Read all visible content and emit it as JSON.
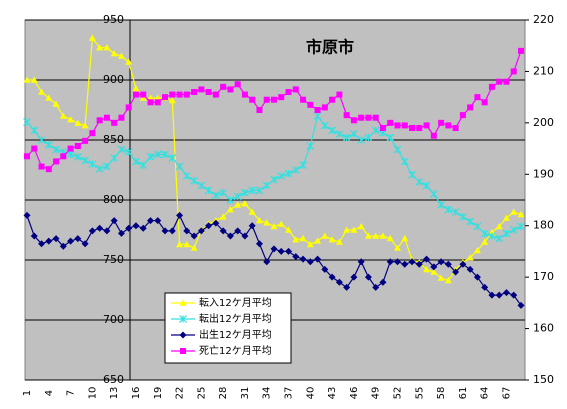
{
  "chart_data": {
    "type": "line",
    "title": "市原市",
    "categories": [
      1,
      null,
      null,
      4,
      null,
      null,
      7,
      null,
      null,
      10,
      null,
      null,
      13,
      null,
      null,
      16,
      null,
      null,
      19,
      null,
      null,
      22,
      null,
      null,
      25,
      null,
      null,
      28,
      null,
      null,
      31,
      null,
      null,
      34,
      null,
      null,
      37,
      null,
      null,
      40,
      null,
      null,
      43,
      null,
      null,
      46,
      null,
      null,
      49,
      null,
      null,
      52,
      null,
      null,
      55,
      null,
      null,
      58,
      null,
      null,
      61,
      null,
      null,
      64,
      null,
      null,
      67,
      null,
      null
    ],
    "ylim": [
      650,
      950
    ],
    "yticks": [
      650,
      700,
      750,
      800,
      850,
      900,
      950
    ],
    "y2lim": [
      150,
      220
    ],
    "y2ticks": [
      150,
      160,
      170,
      180,
      190,
      200,
      210,
      220
    ],
    "grid": true,
    "legend": "lower-left",
    "series": [
      {
        "name": "転入12ケ月平均",
        "color": "#ffff00",
        "marker": "triangle",
        "axis": "y",
        "values": [
          900,
          900,
          890,
          885,
          880,
          870,
          867,
          864,
          862,
          935,
          927,
          927,
          922,
          920,
          915,
          893,
          885,
          885,
          885,
          885,
          883,
          763,
          763,
          760,
          775,
          780,
          783,
          786,
          792,
          796,
          797,
          790,
          783,
          781,
          778,
          780,
          775,
          767,
          768,
          763,
          766,
          770,
          767,
          765,
          775,
          775,
          778,
          770,
          770,
          770,
          768,
          760,
          768,
          750,
          748,
          742,
          740,
          735,
          733,
          742,
          748,
          752,
          758,
          765,
          773,
          778,
          785,
          790,
          788
        ]
      },
      {
        "name": "転出12ケ月平均",
        "color": "#33e0e0",
        "marker": "star",
        "axis": "y",
        "values": [
          865,
          858,
          850,
          846,
          842,
          840,
          838,
          836,
          833,
          830,
          826,
          828,
          835,
          842,
          840,
          832,
          829,
          836,
          838,
          838,
          835,
          828,
          820,
          816,
          812,
          808,
          804,
          806,
          800,
          803,
          806,
          808,
          808,
          812,
          817,
          820,
          822,
          825,
          829,
          845,
          870,
          862,
          858,
          855,
          852,
          855,
          850,
          852,
          858,
          856,
          852,
          842,
          832,
          821,
          815,
          812,
          805,
          796,
          792,
          790,
          786,
          782,
          778,
          772,
          770,
          768,
          772,
          775,
          778
        ]
      },
      {
        "name": "出生12ケ月平均",
        "color": "#000080",
        "marker": "diamond",
        "axis": "y2",
        "values": [
          182,
          178,
          176.5,
          177,
          177.5,
          176,
          177,
          177.5,
          176.5,
          179,
          179.5,
          179,
          181,
          178.5,
          179.5,
          180,
          179.5,
          181,
          181,
          179,
          179,
          182,
          179,
          178,
          179,
          180,
          180.5,
          179,
          178,
          179,
          178,
          180,
          176.5,
          173,
          175.5,
          175,
          175,
          174,
          173.5,
          173,
          173.5,
          171.5,
          170,
          169,
          168,
          170,
          173,
          170,
          168,
          169,
          173,
          173,
          172.5,
          173,
          172.5,
          173.5,
          172,
          173,
          172.5,
          171,
          172.5,
          171.5,
          170,
          168,
          166.5,
          166.5,
          167,
          166.5,
          164.5
        ]
      },
      {
        "name": "死亡12ケ月平均",
        "color": "#ff00ff",
        "marker": "square",
        "axis": "y2",
        "values": [
          193.5,
          195,
          191.5,
          191,
          192.5,
          193.5,
          195,
          195.5,
          196.5,
          198,
          200.5,
          201,
          200,
          201,
          203,
          205.5,
          205.5,
          204,
          204,
          205,
          205.5,
          205.5,
          205.5,
          206,
          206.5,
          206,
          205.5,
          207,
          206.5,
          207.5,
          205.5,
          204.5,
          202.5,
          204.5,
          204.5,
          205,
          206,
          206.5,
          204.5,
          203.5,
          202.5,
          203,
          204.5,
          205.5,
          201.5,
          200.5,
          201,
          201,
          201,
          199,
          200,
          199.5,
          199.5,
          199,
          199,
          199.5,
          197.5,
          200,
          199.5,
          199,
          201.5,
          203,
          205,
          204,
          207,
          208,
          208,
          210,
          214
        ]
      }
    ]
  }
}
